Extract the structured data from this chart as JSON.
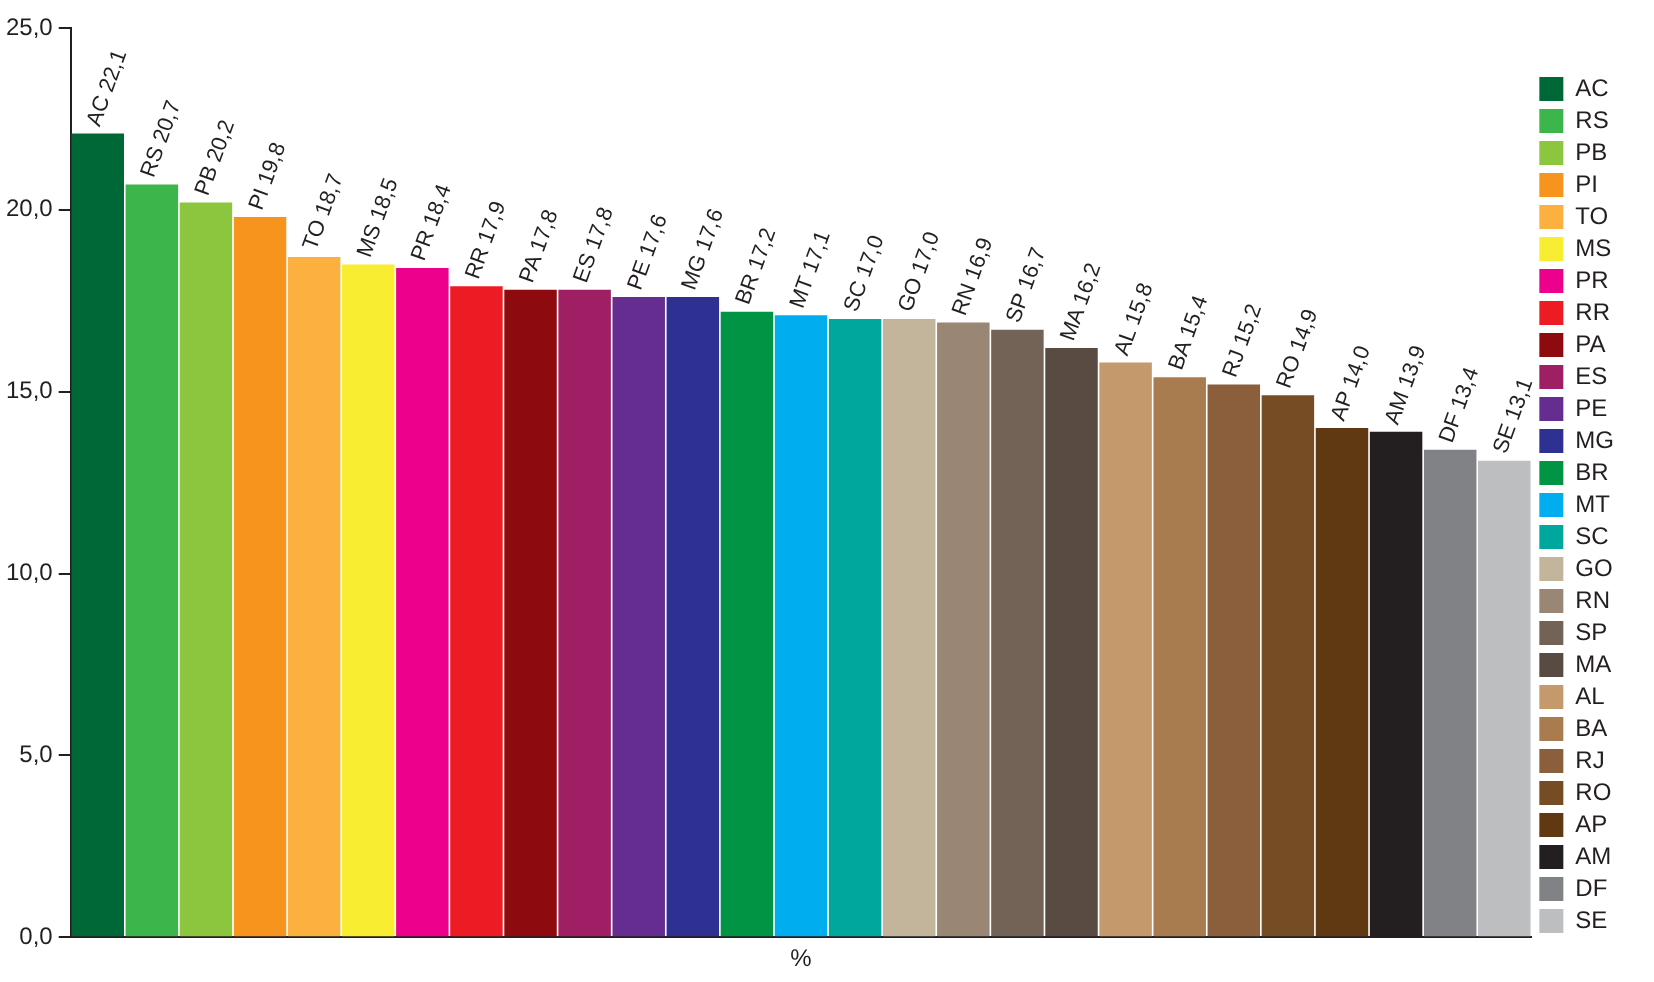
{
  "chart_data": {
    "type": "bar",
    "xlabel": "%",
    "categories": [
      null,
      null,
      null,
      null,
      null,
      null,
      null,
      null,
      null,
      null,
      null,
      null,
      null,
      null,
      null,
      null,
      null,
      null,
      null,
      null,
      null,
      null,
      null,
      null,
      null,
      null,
      null
    ],
    "series": [
      {
        "name": "AC",
        "color": "#006837",
        "values": [
          22.1,
          null,
          null,
          null,
          null,
          null,
          null,
          null,
          null,
          null,
          null,
          null,
          null,
          null,
          null,
          null,
          null,
          null,
          null,
          null,
          null,
          null,
          null,
          null,
          null,
          null,
          null
        ],
        "value_labels": [
          "AC 22,1",
          null,
          null,
          null,
          null,
          null,
          null,
          null,
          null,
          null,
          null,
          null,
          null,
          null,
          null,
          null,
          null,
          null,
          null,
          null,
          null,
          null,
          null,
          null,
          null,
          null,
          null
        ]
      },
      {
        "name": "RS",
        "color": "#3cb54a",
        "values": [
          null,
          20.7,
          null,
          null,
          null,
          null,
          null,
          null,
          null,
          null,
          null,
          null,
          null,
          null,
          null,
          null,
          null,
          null,
          null,
          null,
          null,
          null,
          null,
          null,
          null,
          null,
          null
        ],
        "value_labels": [
          null,
          "RS 20,7",
          null,
          null,
          null,
          null,
          null,
          null,
          null,
          null,
          null,
          null,
          null,
          null,
          null,
          null,
          null,
          null,
          null,
          null,
          null,
          null,
          null,
          null,
          null,
          null,
          null
        ]
      },
      {
        "name": "PB",
        "color": "#8cc63f",
        "values": [
          null,
          null,
          20.2,
          null,
          null,
          null,
          null,
          null,
          null,
          null,
          null,
          null,
          null,
          null,
          null,
          null,
          null,
          null,
          null,
          null,
          null,
          null,
          null,
          null,
          null,
          null,
          null
        ],
        "value_labels": [
          null,
          null,
          "PB 20,2",
          null,
          null,
          null,
          null,
          null,
          null,
          null,
          null,
          null,
          null,
          null,
          null,
          null,
          null,
          null,
          null,
          null,
          null,
          null,
          null,
          null,
          null,
          null,
          null
        ]
      },
      {
        "name": "PI",
        "color": "#f7941d",
        "values": [
          null,
          null,
          null,
          19.8,
          null,
          null,
          null,
          null,
          null,
          null,
          null,
          null,
          null,
          null,
          null,
          null,
          null,
          null,
          null,
          null,
          null,
          null,
          null,
          null,
          null,
          null,
          null
        ],
        "value_labels": [
          null,
          null,
          null,
          "PI 19,8",
          null,
          null,
          null,
          null,
          null,
          null,
          null,
          null,
          null,
          null,
          null,
          null,
          null,
          null,
          null,
          null,
          null,
          null,
          null,
          null,
          null,
          null,
          null
        ]
      },
      {
        "name": "TO",
        "color": "#fbb040",
        "values": [
          null,
          null,
          null,
          null,
          18.7,
          null,
          null,
          null,
          null,
          null,
          null,
          null,
          null,
          null,
          null,
          null,
          null,
          null,
          null,
          null,
          null,
          null,
          null,
          null,
          null,
          null,
          null
        ],
        "value_labels": [
          null,
          null,
          null,
          null,
          "TO 18,7",
          null,
          null,
          null,
          null,
          null,
          null,
          null,
          null,
          null,
          null,
          null,
          null,
          null,
          null,
          null,
          null,
          null,
          null,
          null,
          null,
          null,
          null
        ]
      },
      {
        "name": "MS",
        "color": "#f9ed32",
        "values": [
          null,
          null,
          null,
          null,
          null,
          18.5,
          null,
          null,
          null,
          null,
          null,
          null,
          null,
          null,
          null,
          null,
          null,
          null,
          null,
          null,
          null,
          null,
          null,
          null,
          null,
          null,
          null
        ],
        "value_labels": [
          null,
          null,
          null,
          null,
          null,
          "MS 18,5",
          null,
          null,
          null,
          null,
          null,
          null,
          null,
          null,
          null,
          null,
          null,
          null,
          null,
          null,
          null,
          null,
          null,
          null,
          null,
          null,
          null
        ]
      },
      {
        "name": "PR",
        "color": "#ec008c",
        "values": [
          null,
          null,
          null,
          null,
          null,
          null,
          18.4,
          null,
          null,
          null,
          null,
          null,
          null,
          null,
          null,
          null,
          null,
          null,
          null,
          null,
          null,
          null,
          null,
          null,
          null,
          null,
          null
        ],
        "value_labels": [
          null,
          null,
          null,
          null,
          null,
          null,
          "PR 18,4",
          null,
          null,
          null,
          null,
          null,
          null,
          null,
          null,
          null,
          null,
          null,
          null,
          null,
          null,
          null,
          null,
          null,
          null,
          null,
          null
        ]
      },
      {
        "name": "RR",
        "color": "#ed1c24",
        "values": [
          null,
          null,
          null,
          null,
          null,
          null,
          null,
          17.9,
          null,
          null,
          null,
          null,
          null,
          null,
          null,
          null,
          null,
          null,
          null,
          null,
          null,
          null,
          null,
          null,
          null,
          null,
          null
        ],
        "value_labels": [
          null,
          null,
          null,
          null,
          null,
          null,
          null,
          "RR 17,9",
          null,
          null,
          null,
          null,
          null,
          null,
          null,
          null,
          null,
          null,
          null,
          null,
          null,
          null,
          null,
          null,
          null,
          null,
          null
        ]
      },
      {
        "name": "PA",
        "color": "#8d0b0f",
        "values": [
          null,
          null,
          null,
          null,
          null,
          null,
          null,
          null,
          17.8,
          null,
          null,
          null,
          null,
          null,
          null,
          null,
          null,
          null,
          null,
          null,
          null,
          null,
          null,
          null,
          null,
          null,
          null
        ],
        "value_labels": [
          null,
          null,
          null,
          null,
          null,
          null,
          null,
          null,
          "PA 17,8",
          null,
          null,
          null,
          null,
          null,
          null,
          null,
          null,
          null,
          null,
          null,
          null,
          null,
          null,
          null,
          null,
          null,
          null
        ]
      },
      {
        "name": "ES",
        "color": "#9e1f63",
        "values": [
          null,
          null,
          null,
          null,
          null,
          null,
          null,
          null,
          null,
          17.8,
          null,
          null,
          null,
          null,
          null,
          null,
          null,
          null,
          null,
          null,
          null,
          null,
          null,
          null,
          null,
          null,
          null
        ],
        "value_labels": [
          null,
          null,
          null,
          null,
          null,
          null,
          null,
          null,
          null,
          "ES 17,8",
          null,
          null,
          null,
          null,
          null,
          null,
          null,
          null,
          null,
          null,
          null,
          null,
          null,
          null,
          null,
          null,
          null
        ]
      },
      {
        "name": "PE",
        "color": "#662d91",
        "values": [
          null,
          null,
          null,
          null,
          null,
          null,
          null,
          null,
          null,
          null,
          17.6,
          null,
          null,
          null,
          null,
          null,
          null,
          null,
          null,
          null,
          null,
          null,
          null,
          null,
          null,
          null,
          null
        ],
        "value_labels": [
          null,
          null,
          null,
          null,
          null,
          null,
          null,
          null,
          null,
          null,
          "PE 17,6",
          null,
          null,
          null,
          null,
          null,
          null,
          null,
          null,
          null,
          null,
          null,
          null,
          null,
          null,
          null,
          null
        ]
      },
      {
        "name": "MG",
        "color": "#2e3192",
        "values": [
          null,
          null,
          null,
          null,
          null,
          null,
          null,
          null,
          null,
          null,
          null,
          17.6,
          null,
          null,
          null,
          null,
          null,
          null,
          null,
          null,
          null,
          null,
          null,
          null,
          null,
          null,
          null
        ],
        "value_labels": [
          null,
          null,
          null,
          null,
          null,
          null,
          null,
          null,
          null,
          null,
          null,
          "MG 17,6",
          null,
          null,
          null,
          null,
          null,
          null,
          null,
          null,
          null,
          null,
          null,
          null,
          null,
          null,
          null
        ]
      },
      {
        "name": "BR",
        "color": "#009444",
        "values": [
          null,
          null,
          null,
          null,
          null,
          null,
          null,
          null,
          null,
          null,
          null,
          null,
          17.2,
          null,
          null,
          null,
          null,
          null,
          null,
          null,
          null,
          null,
          null,
          null,
          null,
          null,
          null
        ],
        "value_labels": [
          null,
          null,
          null,
          null,
          null,
          null,
          null,
          null,
          null,
          null,
          null,
          null,
          "BR 17,2",
          null,
          null,
          null,
          null,
          null,
          null,
          null,
          null,
          null,
          null,
          null,
          null,
          null,
          null
        ]
      },
      {
        "name": "MT",
        "color": "#00aeef",
        "values": [
          null,
          null,
          null,
          null,
          null,
          null,
          null,
          null,
          null,
          null,
          null,
          null,
          null,
          17.1,
          null,
          null,
          null,
          null,
          null,
          null,
          null,
          null,
          null,
          null,
          null,
          null,
          null
        ],
        "value_labels": [
          null,
          null,
          null,
          null,
          null,
          null,
          null,
          null,
          null,
          null,
          null,
          null,
          null,
          "MT 17,1",
          null,
          null,
          null,
          null,
          null,
          null,
          null,
          null,
          null,
          null,
          null,
          null,
          null
        ]
      },
      {
        "name": "SC",
        "color": "#00a79d",
        "values": [
          null,
          null,
          null,
          null,
          null,
          null,
          null,
          null,
          null,
          null,
          null,
          null,
          null,
          null,
          17.0,
          null,
          null,
          null,
          null,
          null,
          null,
          null,
          null,
          null,
          null,
          null,
          null
        ],
        "value_labels": [
          null,
          null,
          null,
          null,
          null,
          null,
          null,
          null,
          null,
          null,
          null,
          null,
          null,
          null,
          "SC 17,0",
          null,
          null,
          null,
          null,
          null,
          null,
          null,
          null,
          null,
          null,
          null,
          null
        ]
      },
      {
        "name": "GO",
        "color": "#c2b59b",
        "values": [
          null,
          null,
          null,
          null,
          null,
          null,
          null,
          null,
          null,
          null,
          null,
          null,
          null,
          null,
          null,
          17.0,
          null,
          null,
          null,
          null,
          null,
          null,
          null,
          null,
          null,
          null,
          null
        ],
        "value_labels": [
          null,
          null,
          null,
          null,
          null,
          null,
          null,
          null,
          null,
          null,
          null,
          null,
          null,
          null,
          null,
          "GO 17,0",
          null,
          null,
          null,
          null,
          null,
          null,
          null,
          null,
          null,
          null,
          null
        ]
      },
      {
        "name": "RN",
        "color": "#998675",
        "values": [
          null,
          null,
          null,
          null,
          null,
          null,
          null,
          null,
          null,
          null,
          null,
          null,
          null,
          null,
          null,
          null,
          16.9,
          null,
          null,
          null,
          null,
          null,
          null,
          null,
          null,
          null,
          null
        ],
        "value_labels": [
          null,
          null,
          null,
          null,
          null,
          null,
          null,
          null,
          null,
          null,
          null,
          null,
          null,
          null,
          null,
          null,
          "RN 16,9",
          null,
          null,
          null,
          null,
          null,
          null,
          null,
          null,
          null,
          null
        ]
      },
      {
        "name": "SP",
        "color": "#736357",
        "values": [
          null,
          null,
          null,
          null,
          null,
          null,
          null,
          null,
          null,
          null,
          null,
          null,
          null,
          null,
          null,
          null,
          null,
          16.7,
          null,
          null,
          null,
          null,
          null,
          null,
          null,
          null,
          null
        ],
        "value_labels": [
          null,
          null,
          null,
          null,
          null,
          null,
          null,
          null,
          null,
          null,
          null,
          null,
          null,
          null,
          null,
          null,
          null,
          "SP 16,7",
          null,
          null,
          null,
          null,
          null,
          null,
          null,
          null,
          null
        ]
      },
      {
        "name": "MA",
        "color": "#594a42",
        "values": [
          null,
          null,
          null,
          null,
          null,
          null,
          null,
          null,
          null,
          null,
          null,
          null,
          null,
          null,
          null,
          null,
          null,
          null,
          16.2,
          null,
          null,
          null,
          null,
          null,
          null,
          null,
          null
        ],
        "value_labels": [
          null,
          null,
          null,
          null,
          null,
          null,
          null,
          null,
          null,
          null,
          null,
          null,
          null,
          null,
          null,
          null,
          null,
          null,
          "MA 16,2",
          null,
          null,
          null,
          null,
          null,
          null,
          null,
          null
        ]
      },
      {
        "name": "AL",
        "color": "#c49a6c",
        "values": [
          null,
          null,
          null,
          null,
          null,
          null,
          null,
          null,
          null,
          null,
          null,
          null,
          null,
          null,
          null,
          null,
          null,
          null,
          null,
          15.8,
          null,
          null,
          null,
          null,
          null,
          null,
          null
        ],
        "value_labels": [
          null,
          null,
          null,
          null,
          null,
          null,
          null,
          null,
          null,
          null,
          null,
          null,
          null,
          null,
          null,
          null,
          null,
          null,
          null,
          "AL 15,8",
          null,
          null,
          null,
          null,
          null,
          null,
          null
        ]
      },
      {
        "name": "BA",
        "color": "#a97c50",
        "values": [
          null,
          null,
          null,
          null,
          null,
          null,
          null,
          null,
          null,
          null,
          null,
          null,
          null,
          null,
          null,
          null,
          null,
          null,
          null,
          null,
          15.4,
          null,
          null,
          null,
          null,
          null,
          null
        ],
        "value_labels": [
          null,
          null,
          null,
          null,
          null,
          null,
          null,
          null,
          null,
          null,
          null,
          null,
          null,
          null,
          null,
          null,
          null,
          null,
          null,
          null,
          "BA 15,4",
          null,
          null,
          null,
          null,
          null,
          null
        ]
      },
      {
        "name": "RJ",
        "color": "#8b5e3c",
        "values": [
          null,
          null,
          null,
          null,
          null,
          null,
          null,
          null,
          null,
          null,
          null,
          null,
          null,
          null,
          null,
          null,
          null,
          null,
          null,
          null,
          null,
          15.2,
          null,
          null,
          null,
          null,
          null
        ],
        "value_labels": [
          null,
          null,
          null,
          null,
          null,
          null,
          null,
          null,
          null,
          null,
          null,
          null,
          null,
          null,
          null,
          null,
          null,
          null,
          null,
          null,
          null,
          "RJ 15,2",
          null,
          null,
          null,
          null,
          null
        ]
      },
      {
        "name": "RO",
        "color": "#754c24",
        "values": [
          null,
          null,
          null,
          null,
          null,
          null,
          null,
          null,
          null,
          null,
          null,
          null,
          null,
          null,
          null,
          null,
          null,
          null,
          null,
          null,
          null,
          null,
          14.9,
          null,
          null,
          null,
          null
        ],
        "value_labels": [
          null,
          null,
          null,
          null,
          null,
          null,
          null,
          null,
          null,
          null,
          null,
          null,
          null,
          null,
          null,
          null,
          null,
          null,
          null,
          null,
          null,
          null,
          "RO 14,9",
          null,
          null,
          null,
          null
        ]
      },
      {
        "name": "AP",
        "color": "#603913",
        "values": [
          null,
          null,
          null,
          null,
          null,
          null,
          null,
          null,
          null,
          null,
          null,
          null,
          null,
          null,
          null,
          null,
          null,
          null,
          null,
          null,
          null,
          null,
          null,
          14.0,
          null,
          null,
          null
        ],
        "value_labels": [
          null,
          null,
          null,
          null,
          null,
          null,
          null,
          null,
          null,
          null,
          null,
          null,
          null,
          null,
          null,
          null,
          null,
          null,
          null,
          null,
          null,
          null,
          null,
          "AP 14,0",
          null,
          null,
          null
        ]
      },
      {
        "name": "AM",
        "color": "#231f20",
        "values": [
          null,
          null,
          null,
          null,
          null,
          null,
          null,
          null,
          null,
          null,
          null,
          null,
          null,
          null,
          null,
          null,
          null,
          null,
          null,
          null,
          null,
          null,
          null,
          null,
          13.9,
          null,
          null
        ],
        "value_labels": [
          null,
          null,
          null,
          null,
          null,
          null,
          null,
          null,
          null,
          null,
          null,
          null,
          null,
          null,
          null,
          null,
          null,
          null,
          null,
          null,
          null,
          null,
          null,
          null,
          "AM 13,9",
          null,
          null
        ]
      },
      {
        "name": "DF",
        "color": "#808285",
        "values": [
          null,
          null,
          null,
          null,
          null,
          null,
          null,
          null,
          null,
          null,
          null,
          null,
          null,
          null,
          null,
          null,
          null,
          null,
          null,
          null,
          null,
          null,
          null,
          null,
          null,
          13.4,
          null
        ],
        "value_labels": [
          null,
          null,
          null,
          null,
          null,
          null,
          null,
          null,
          null,
          null,
          null,
          null,
          null,
          null,
          null,
          null,
          null,
          null,
          null,
          null,
          null,
          null,
          null,
          null,
          null,
          "DF 13,4",
          null
        ]
      },
      {
        "name": "SE",
        "color": "#bcbec0",
        "values": [
          null,
          null,
          null,
          null,
          null,
          null,
          null,
          null,
          null,
          null,
          null,
          null,
          null,
          null,
          null,
          null,
          null,
          null,
          null,
          null,
          null,
          null,
          null,
          null,
          null,
          null,
          13.1
        ],
        "value_labels": [
          null,
          null,
          null,
          null,
          null,
          null,
          null,
          null,
          null,
          null,
          null,
          null,
          null,
          null,
          null,
          null,
          null,
          null,
          null,
          null,
          null,
          null,
          null,
          null,
          null,
          null,
          "SE 13,1"
        ]
      }
    ],
    "ylim": [
      0,
      25
    ],
    "yticks": [
      {
        "value": 0,
        "label": "0,0"
      },
      {
        "value": 5,
        "label": "5,0"
      },
      {
        "value": 10,
        "label": "10,0"
      },
      {
        "value": 15,
        "label": "15,0"
      },
      {
        "value": 20,
        "label": "20,0"
      },
      {
        "value": 25,
        "label": "25,0"
      }
    ],
    "legend": "right",
    "tick_labels": "y"
  }
}
